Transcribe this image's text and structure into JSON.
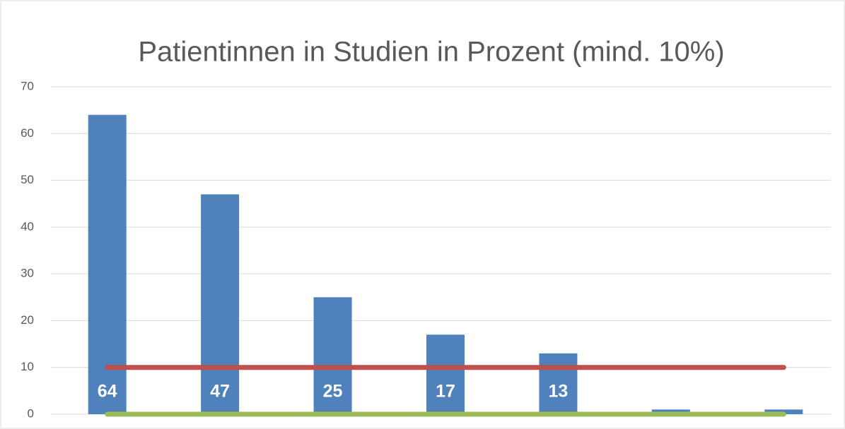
{
  "chart_data": {
    "type": "bar",
    "title": "Patientinnen in Studien in Prozent (mind. 10%)",
    "categories": [
      null,
      null,
      null,
      null,
      null,
      null,
      null
    ],
    "series": [
      {
        "type": "bar",
        "color": "#4f81bd",
        "values": [
          64,
          47,
          25,
          17,
          13,
          1,
          1
        ],
        "value_labels": [
          64,
          47,
          25,
          17,
          13,
          null,
          null
        ]
      },
      {
        "type": "line",
        "color": "#c0504d",
        "values": [
          10,
          10,
          10,
          10,
          10,
          10,
          10
        ]
      },
      {
        "type": "line",
        "color": "#9bbb59",
        "values": [
          0,
          0,
          0,
          0,
          0,
          0,
          0
        ]
      }
    ],
    "ylim": [
      0,
      70
    ],
    "yticks": [
      0,
      10,
      20,
      30,
      40,
      50,
      60,
      70
    ],
    "grid": true
  }
}
